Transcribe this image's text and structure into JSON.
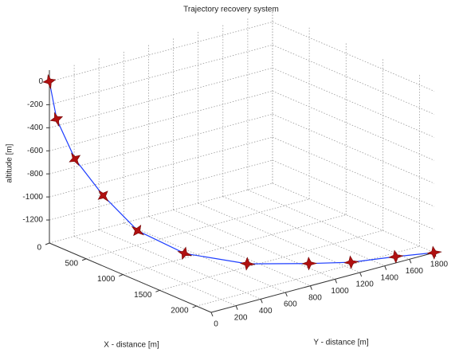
{
  "chart_data": {
    "type": "line3d",
    "title": "Trajectory recovery system",
    "x_label": "X - distance [m]",
    "y_label": "Y - distance [m]",
    "z_label": "altitude [m]",
    "x": [
      0,
      100,
      300,
      600,
      900,
      1250,
      1600,
      1850,
      2000,
      2100,
      2200
    ],
    "y": [
      0,
      0,
      30,
      80,
      180,
      350,
      650,
      1000,
      1250,
      1550,
      1800
    ],
    "z": [
      0,
      -300,
      -600,
      -850,
      -1100,
      -1250,
      -1330,
      -1360,
      -1380,
      -1390,
      -1400
    ],
    "color": "#1f3fff",
    "marker_color": "#b01010",
    "xlim": [
      0,
      2200
    ],
    "xticks": [
      0,
      500,
      1000,
      1500,
      2000
    ],
    "ylim": [
      0,
      1800
    ],
    "yticks": [
      0,
      200,
      400,
      600,
      800,
      1000,
      1200,
      1400,
      1600,
      1800
    ],
    "zlim": [
      -1400,
      100
    ],
    "zticks": [
      -1200,
      -1000,
      -800,
      -600,
      -400,
      -200,
      0
    ],
    "grid": true
  }
}
